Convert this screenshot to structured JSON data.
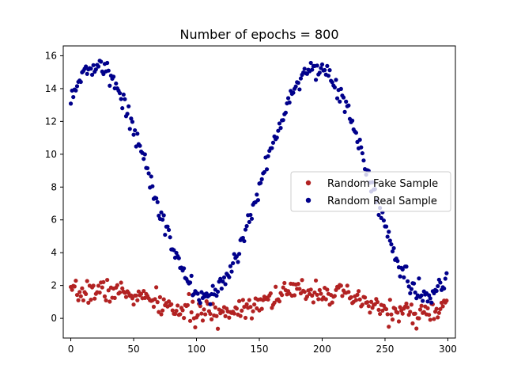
{
  "chart_data": {
    "type": "scatter",
    "title": "Number of epochs = 800",
    "xlabel": "",
    "ylabel": "",
    "xlim": [
      -6,
      306
    ],
    "ylim": [
      -1.2,
      16.6
    ],
    "xticks": [
      0,
      50,
      100,
      150,
      200,
      250,
      300
    ],
    "yticks": [
      0,
      2,
      4,
      6,
      8,
      10,
      12,
      14,
      16
    ],
    "legend_position": "center-right",
    "series": [
      {
        "name": "Random Fake Sample",
        "color": "#b22222",
        "marker": "circle",
        "model": {
          "x_start": 0,
          "x_end": 299,
          "x_step": 1,
          "baseline": 1.0,
          "amplitude": 0.7,
          "period": 165,
          "phase_peak_x": 190,
          "noise": 0.35,
          "seed": 7
        }
      },
      {
        "name": "Random Real Sample",
        "color": "#00008b",
        "marker": "circle",
        "model": {
          "x_start": 0,
          "x_end": 299,
          "x_step": 1,
          "baseline": 8.3,
          "amplitude": 7.0,
          "period": 175,
          "phase_peak_x": 195,
          "noise": 0.3,
          "seed": 13
        }
      }
    ]
  }
}
